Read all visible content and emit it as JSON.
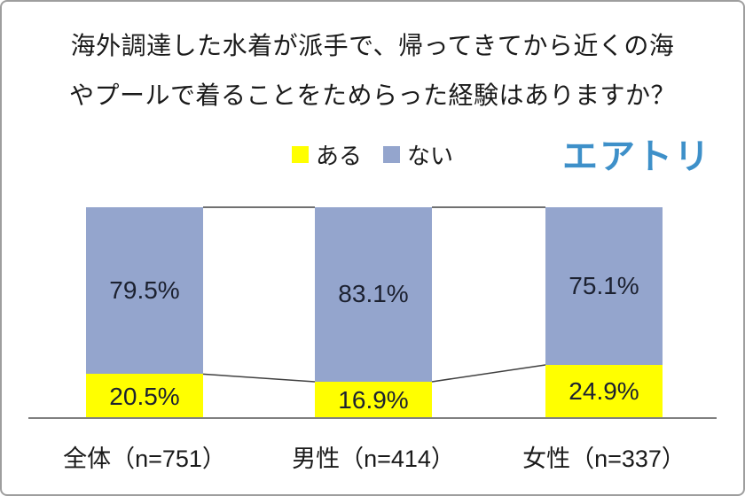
{
  "title": {
    "line1": "海外調達した水着が派手で、帰ってきてから近くの海",
    "line2": "やプールで着ることをためらった経験はありますか？"
  },
  "logo": {
    "text": "エアトリ",
    "color": "#3E90C9"
  },
  "legend": [
    {
      "label": "ある",
      "color": "#FFFF00"
    },
    {
      "label": "ない",
      "color": "#94A5CD"
    }
  ],
  "chart_data": {
    "type": "bar",
    "subtype": "stacked-100-percent-column",
    "title": "海外調達した水着が派手で、帰ってきてから近くの海やプールで着ることをためらった経験はありますか？",
    "categories": [
      "全体（n=751）",
      "男性（n=414）",
      "女性（n=337）"
    ],
    "series": [
      {
        "name": "ある",
        "color": "#FFFF00",
        "values": [
          20.5,
          16.9,
          24.9
        ]
      },
      {
        "name": "ない",
        "color": "#94A5CD",
        "values": [
          79.5,
          83.1,
          75.1
        ]
      }
    ],
    "value_labels": true,
    "value_label_suffix": "%",
    "connector_lines": true,
    "connector_color": "#404040",
    "axis_line_color": "#808080",
    "ylim": [
      0,
      100
    ],
    "grid": false,
    "legend_position": "top"
  }
}
